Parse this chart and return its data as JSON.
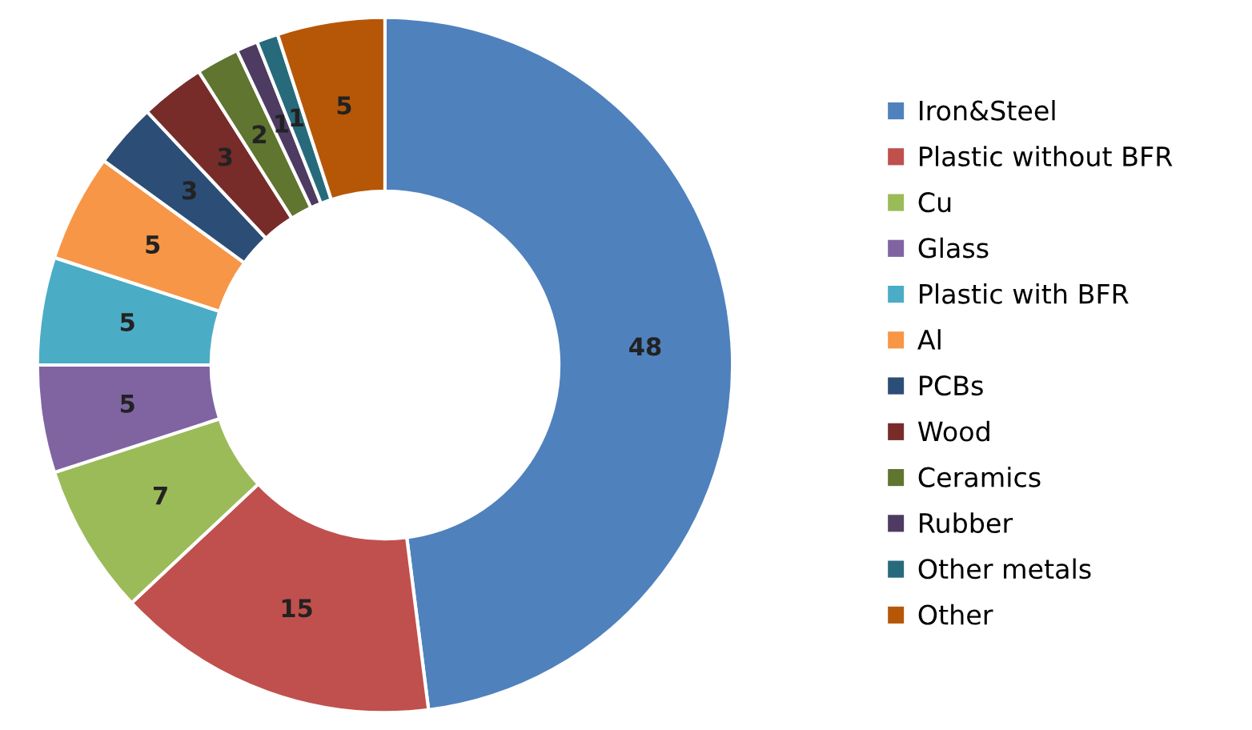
{
  "chart_data": {
    "type": "donut",
    "categories": [
      "Iron&Steel",
      "Plastic without BFR",
      "Cu",
      "Glass",
      "Plastic with BFR",
      "Al",
      "PCBs",
      "Wood",
      "Ceramics",
      "Rubber",
      "Other metals",
      "Other"
    ],
    "values": [
      48,
      15,
      7,
      5,
      5,
      5,
      3,
      3,
      2,
      1,
      1,
      5
    ],
    "colors": [
      "#4f81bd",
      "#c0504d",
      "#9bbb59",
      "#8064a2",
      "#4bacc6",
      "#f79646",
      "#2c4d75",
      "#772c2a",
      "#5f7530",
      "#4d3b62",
      "#276a7c",
      "#b65708"
    ],
    "data_labels": true,
    "legend": "right"
  }
}
